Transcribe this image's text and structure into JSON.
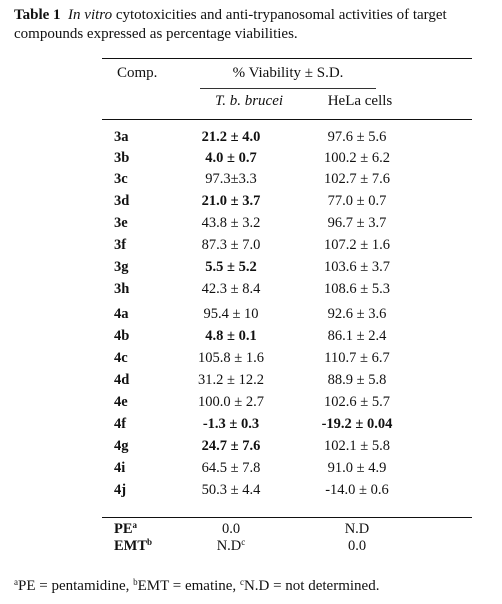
{
  "caption": {
    "label": "Table 1",
    "italic": "In vitro",
    "text": " cytotoxicities and anti-trypanosomal activities of target compounds expressed as percentage viabilities."
  },
  "headers": {
    "comp": "Comp.",
    "viability": "% Viability ± S.D.",
    "tb": "T. b. brucei",
    "hela": "HeLa cells"
  },
  "rows": [
    {
      "comp": "3a",
      "tb": "21.2 ± 4.0",
      "tb_bold": true,
      "hela": "97.6 ± 5.6",
      "hela_bold": false
    },
    {
      "comp": "3b",
      "tb": "4.0 ± 0.7",
      "tb_bold": true,
      "hela": "100.2 ± 6.2",
      "hela_bold": false
    },
    {
      "comp": "3c",
      "tb": "97.3±3.3",
      "tb_bold": false,
      "hela": "102.7 ± 7.6",
      "hela_bold": false
    },
    {
      "comp": "3d",
      "tb": "21.0 ± 3.7",
      "tb_bold": true,
      "hela": "77.0 ± 0.7",
      "hela_bold": false
    },
    {
      "comp": "3e",
      "tb": "43.8 ± 3.2",
      "tb_bold": false,
      "hela": "96.7 ± 3.7",
      "hela_bold": false
    },
    {
      "comp": "3f",
      "tb": "87.3 ± 7.0",
      "tb_bold": false,
      "hela": "107.2 ± 1.6",
      "hela_bold": false
    },
    {
      "comp": "3g",
      "tb": "5.5 ± 5.2",
      "tb_bold": true,
      "hela": "103.6 ± 3.7",
      "hela_bold": false
    },
    {
      "comp": "3h",
      "tb": "42.3 ± 8.4",
      "tb_bold": false,
      "hela": "108.6 ± 5.3",
      "hela_bold": false
    },
    {
      "comp": "4a",
      "tb": "95.4 ± 10",
      "tb_bold": false,
      "hela": "92.6 ± 3.6",
      "hela_bold": false
    },
    {
      "comp": "4b",
      "tb": "4.8 ± 0.1",
      "tb_bold": true,
      "hela": "86.1 ± 2.4",
      "hela_bold": false
    },
    {
      "comp": "4c",
      "tb": "105.8 ± 1.6",
      "tb_bold": false,
      "hela": "110.7 ± 6.7",
      "hela_bold": false
    },
    {
      "comp": "4d",
      "tb": "31.2 ± 12.2",
      "tb_bold": false,
      "hela": "88.9 ± 5.8",
      "hela_bold": false
    },
    {
      "comp": "4e",
      "tb": "100.0 ± 2.7",
      "tb_bold": false,
      "hela": "102.6 ± 5.7",
      "hela_bold": false
    },
    {
      "comp": "4f",
      "tb": "-1.3 ± 0.3",
      "tb_bold": true,
      "hela": "-19.2 ± 0.04",
      "hela_bold": true
    },
    {
      "comp": "4g",
      "tb": "24.7 ± 7.6",
      "tb_bold": true,
      "hela": "102.1 ± 5.8",
      "hela_bold": false
    },
    {
      "comp": "4i",
      "tb": "64.5 ± 7.8",
      "tb_bold": false,
      "hela": "91.0 ± 4.9",
      "hela_bold": false
    },
    {
      "comp": "4j",
      "tb": "50.3 ± 4.4",
      "tb_bold": false,
      "hela": "-14.0 ± 0.6",
      "hela_bold": false
    }
  ],
  "controls": [
    {
      "comp": "PE",
      "sup": "a",
      "tb": "0.0",
      "tb_sup": "",
      "hela": "N.D"
    },
    {
      "comp": "EMT",
      "sup": "b",
      "tb": "N.D",
      "tb_sup": "c",
      "hela": "0.0"
    }
  ],
  "footnote": [
    {
      "sup": "a",
      "text": "PE = pentamidine, "
    },
    {
      "sup": "b",
      "text": "EMT = ematine, "
    },
    {
      "sup": "c",
      "text": "N.D = not determined."
    }
  ]
}
